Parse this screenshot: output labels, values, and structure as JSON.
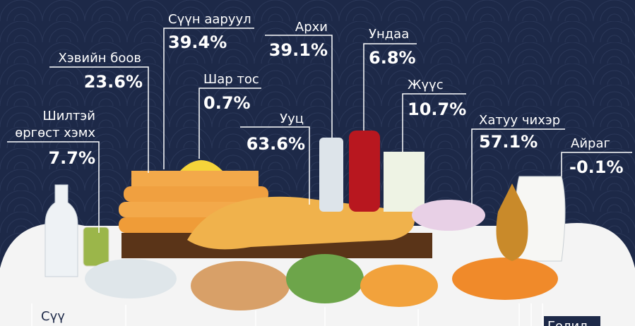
{
  "items": [
    {
      "label": [
        "Шилтэй",
        "өргөст хэмх"
      ],
      "value": "7.7%"
    },
    {
      "label": [
        "Хэвийн боов"
      ],
      "value": "23.6%"
    },
    {
      "label": [
        "Сүүн ааруул"
      ],
      "value": "39.4%"
    },
    {
      "label": [
        "Шар тос"
      ],
      "value": "0.7%"
    },
    {
      "label": [
        "Архи"
      ],
      "value": "39.1%"
    },
    {
      "label": [
        "Ундаа"
      ],
      "value": "6.8%"
    },
    {
      "label": [
        "Ууц"
      ],
      "value": "63.6%"
    },
    {
      "label": [
        "Жүүс"
      ],
      "value": "10.7%"
    },
    {
      "label": [
        "Хатуу чихэр"
      ],
      "value": "57.1%"
    },
    {
      "label": [
        "Айраг"
      ],
      "value": "-0.1%"
    },
    {
      "label": [
        "Сүү"
      ]
    },
    {
      "label": [
        "Голил"
      ]
    }
  ]
}
